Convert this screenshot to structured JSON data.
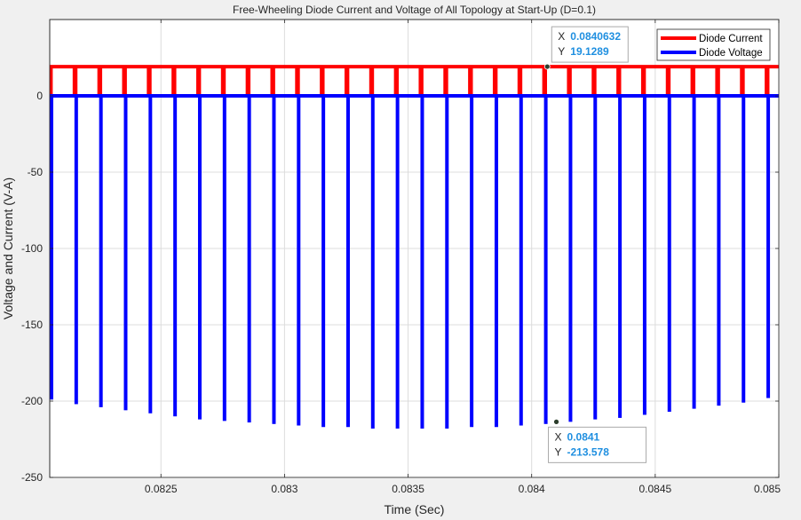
{
  "chart_data": {
    "type": "line",
    "title": "Free-Wheeling Diode Current and Voltage of All Topology at Start-Up (D=0.1)",
    "xlabel": "Time (Sec)",
    "ylabel": "Voltage and Current (V-A)",
    "xlim": [
      0.08205,
      0.085
    ],
    "ylim": [
      -250,
      50
    ],
    "xticks": [
      0.0825,
      0.083,
      0.0835,
      0.084,
      0.0845,
      0.085
    ],
    "xtick_labels": [
      "0.0825",
      "0.083",
      "0.0835",
      "0.084",
      "0.0845",
      "0.085"
    ],
    "yticks": [
      -250,
      -200,
      -150,
      -100,
      -50,
      0
    ],
    "ytick_labels": [
      "-250",
      "-200",
      "-150",
      "-100",
      "-50",
      "0"
    ],
    "grid": true,
    "legend_position": "top-right",
    "switching_period": 0.0001,
    "duty_cycle": 0.1,
    "series": [
      {
        "name": "Diode Current",
        "color": "#ff0000",
        "high_value": 19.1289,
        "low_value": 0
      },
      {
        "name": "Diode Voltage",
        "color": "#0000ff",
        "high_value": 0,
        "pulse_times": [
          0.08205,
          0.08215,
          0.08225,
          0.08235,
          0.08245,
          0.08255,
          0.08265,
          0.08275,
          0.08285,
          0.08295,
          0.08305,
          0.08315,
          0.08325,
          0.08335,
          0.08345,
          0.08355,
          0.08365,
          0.08375,
          0.08385,
          0.08395,
          0.08405,
          0.08415,
          0.08425,
          0.08435,
          0.08445,
          0.08455,
          0.08465,
          0.08475,
          0.08485,
          0.08495
        ],
        "pulse_minima": [
          -199,
          -202,
          -204,
          -206,
          -208,
          -210,
          -212,
          -213,
          -214,
          -215,
          -216,
          -217,
          -217,
          -218,
          -218,
          -218,
          -218,
          -217,
          -217,
          -216,
          -215,
          -213.578,
          -212,
          -211,
          -209,
          -207,
          -205,
          -203,
          -201,
          -198
        ]
      }
    ],
    "datatips": [
      {
        "x_label": "X",
        "x_value": "0.0840632",
        "y_label": "Y",
        "y_value": "19.1289",
        "x": 0.0840632,
        "y": 19.1289
      },
      {
        "x_label": "X",
        "x_value": "0.0841",
        "y_label": "Y",
        "y_value": "-213.578",
        "x": 0.0841,
        "y": -213.578
      }
    ]
  }
}
